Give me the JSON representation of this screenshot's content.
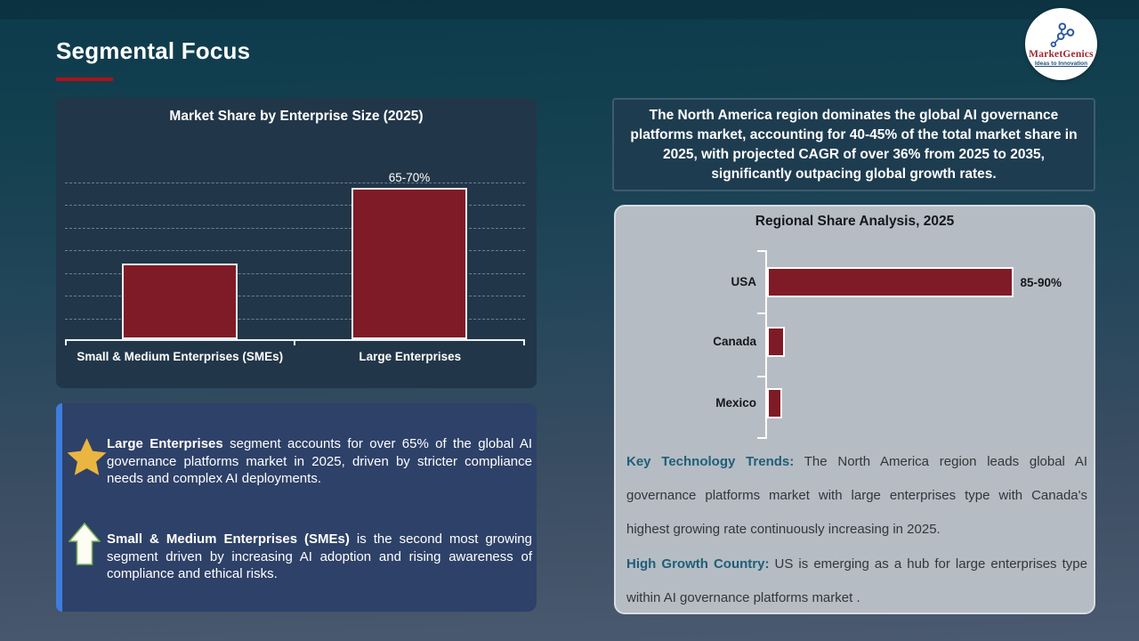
{
  "slide": {
    "title": "Segmental Focus"
  },
  "logo": {
    "brand": "MarketGenics",
    "tagline": "Ideas to Innovation"
  },
  "colors": {
    "bar_fill": "#7f1b26",
    "accent_red": "#b01116",
    "dark_panel": "#223649",
    "gray_panel": "#b6bcc4",
    "insight_box": "#2e4168",
    "insight_accent": "#3d7de0",
    "note_lead_teal": "#1e5f78",
    "star_gold": "#eab541"
  },
  "callout": {
    "text": "The North America region dominates the global AI governance platforms market, accounting for 40-45% of the total market share in 2025, with projected CAGR of over 36% from 2025 to 2035, significantly outpacing global growth rates."
  },
  "chart_data": [
    {
      "type": "bar",
      "orientation": "vertical",
      "title": "Market Share by  Enterprise Size (2025)",
      "categories": [
        "Small & Medium Enterprises (SMEs)",
        "Large Enterprises"
      ],
      "values": [
        34,
        67.5
      ],
      "data_labels": [
        "",
        "65-70%"
      ],
      "ylim": [
        0,
        70
      ],
      "grid": "horizontal-dashed",
      "legend": "none",
      "bar_color": "#7f1b26"
    },
    {
      "type": "bar",
      "orientation": "horizontal",
      "title": "Regional Share Analysis, 2025",
      "categories": [
        "USA",
        "Canada",
        "Mexico"
      ],
      "values": [
        87.5,
        6,
        5
      ],
      "data_labels": [
        "85-90%",
        "",
        ""
      ],
      "xlim": [
        0,
        100
      ],
      "grid": "off",
      "legend": "none",
      "bar_color": "#7f1b26"
    }
  ],
  "insights": [
    {
      "icon": "star",
      "lead": "Large Enterprises",
      "text": " segment accounts for over 65% of the global AI governance platforms market in 2025, driven by stricter compliance needs and complex AI deployments."
    },
    {
      "icon": "up-arrow",
      "lead": "Small & Medium Enterprises (SMEs)",
      "text": " is the second most growing segment driven by increasing AI adoption and rising awareness of compliance and ethical risks."
    }
  ],
  "regional_notes": [
    {
      "lead": "Key Technology Trends:",
      "text": " The North America region leads global AI governance platforms market with large enterprises type with Canada's highest growing rate continuously increasing in 2025."
    },
    {
      "lead": "High Growth Country:",
      "text": " US is emerging as a hub for large enterprises type within AI governance platforms market ."
    }
  ]
}
